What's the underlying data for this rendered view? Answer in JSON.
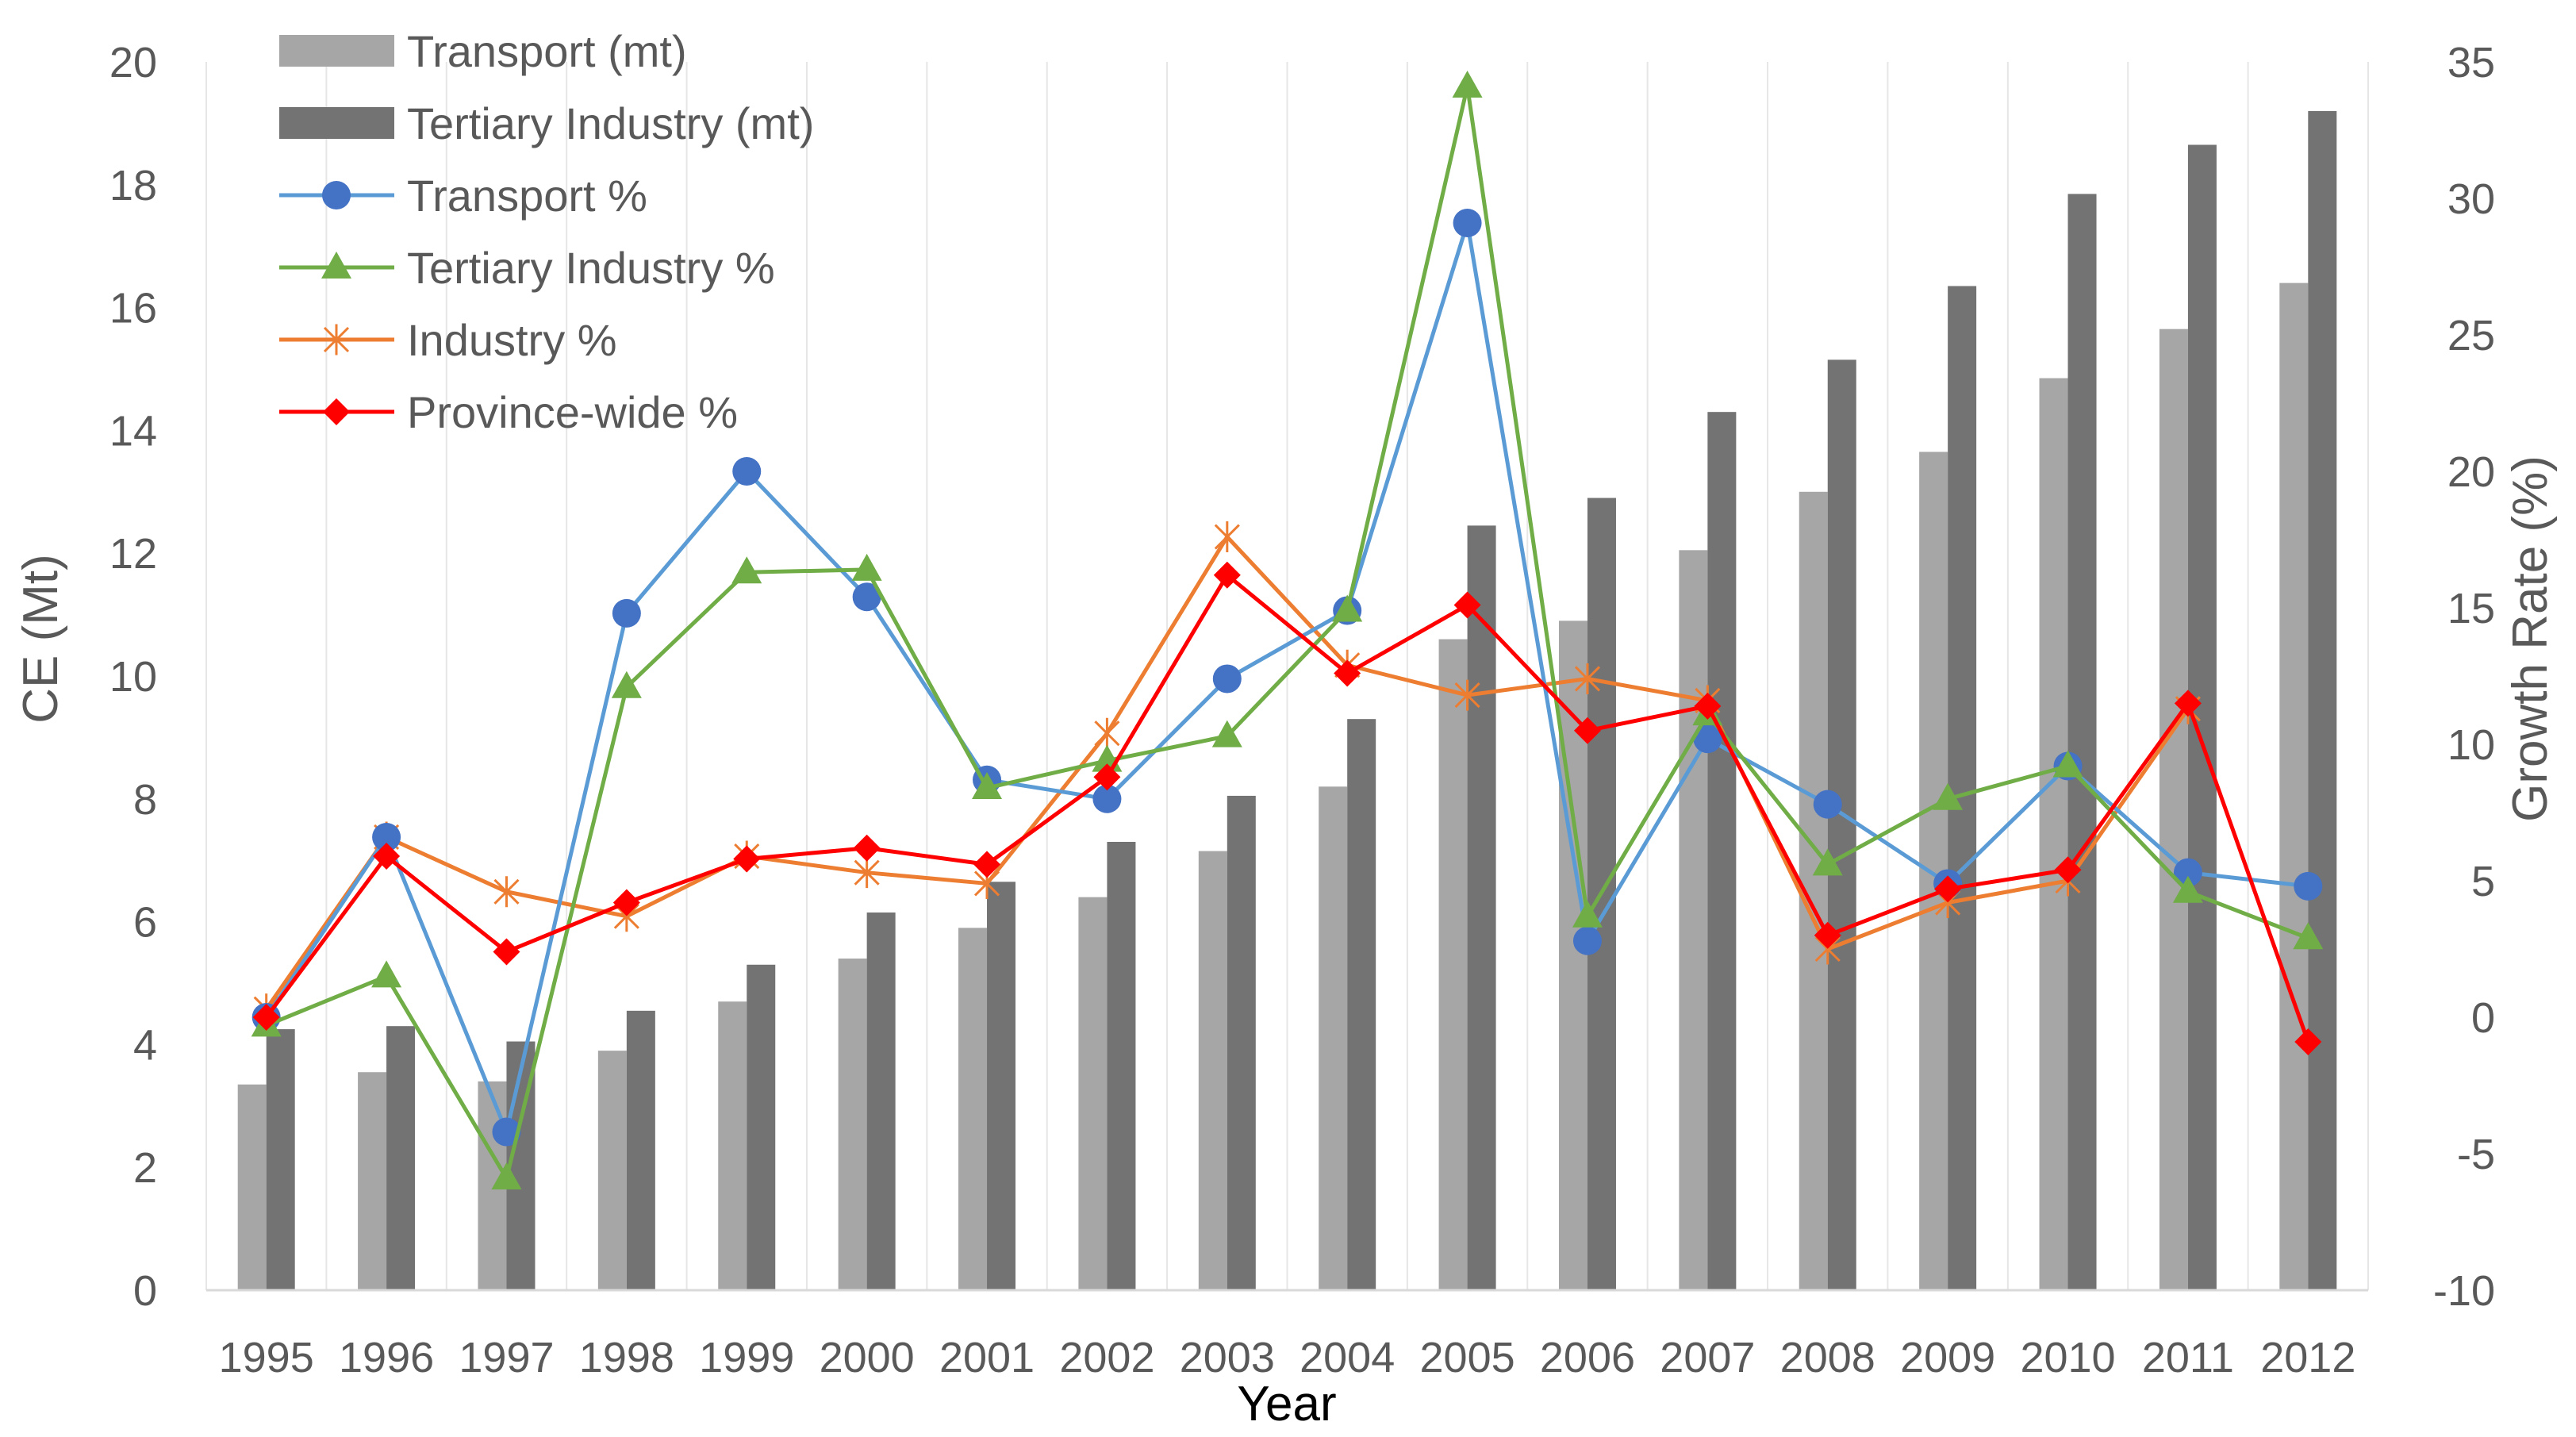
{
  "chart_data": {
    "type": "bar",
    "title": "",
    "xlabel": "Year",
    "ylabel": "CE (Mt)",
    "y2label": "Growth Rate (%)",
    "ylim": [
      0,
      20
    ],
    "y2lim": [
      -10,
      35
    ],
    "yticks": [
      "0",
      "2",
      "4",
      "6",
      "8",
      "10",
      "12",
      "14",
      "16",
      "18",
      "20"
    ],
    "y2ticks": [
      "-10",
      "-5",
      "0",
      "5",
      "10",
      "15",
      "20",
      "25",
      "30",
      "35"
    ],
    "categories": [
      "1995",
      "1996",
      "1997",
      "1998",
      "1999",
      "2000",
      "2001",
      "2002",
      "2003",
      "2004",
      "2005",
      "2006",
      "2007",
      "2008",
      "2009",
      "2010",
      "2011",
      "2012"
    ],
    "grid": "vertical",
    "legend": "top-left",
    "series": [
      {
        "name": "Transport (mt)",
        "kind": "bar",
        "axis": "left",
        "color": "#a6a6a6",
        "values": [
          3.35,
          3.55,
          3.4,
          3.9,
          4.7,
          5.4,
          5.9,
          6.4,
          7.15,
          8.2,
          10.6,
          10.9,
          12.05,
          13.0,
          13.65,
          14.85,
          15.65,
          16.4
        ]
      },
      {
        "name": "Tertiary Industry (mt)",
        "kind": "bar",
        "axis": "left",
        "color": "#737373",
        "values": [
          4.25,
          4.3,
          4.05,
          4.55,
          5.3,
          6.15,
          6.65,
          7.3,
          8.05,
          9.3,
          12.45,
          12.9,
          14.3,
          15.15,
          16.35,
          17.85,
          18.65,
          19.2
        ]
      },
      {
        "name": "Transport %",
        "kind": "line",
        "axis": "right",
        "color": "#5b9bd5",
        "marker": "circle",
        "markerColor": "#4472c4",
        "values": [
          0.0,
          6.6,
          -4.2,
          14.8,
          20.0,
          15.4,
          8.7,
          8.0,
          12.4,
          14.9,
          29.1,
          2.8,
          10.2,
          7.8,
          4.9,
          9.2,
          5.3,
          4.8
        ]
      },
      {
        "name": "Tertiary Industry %",
        "kind": "line",
        "axis": "right",
        "color": "#70ad47",
        "marker": "triangle",
        "markerColor": "#70ad47",
        "values": [
          -0.3,
          1.5,
          -5.9,
          12.1,
          16.3,
          16.4,
          8.4,
          9.4,
          10.3,
          14.9,
          34.1,
          3.7,
          11.1,
          5.6,
          8.0,
          9.2,
          4.6,
          2.9
        ]
      },
      {
        "name": "Industry %",
        "kind": "line",
        "axis": "right",
        "color": "#ed7d31",
        "marker": "star",
        "markerColor": "#ed7d31",
        "values": [
          0.3,
          6.6,
          4.6,
          3.7,
          5.9,
          5.3,
          4.9,
          10.4,
          17.6,
          12.9,
          11.8,
          12.4,
          11.6,
          2.5,
          4.2,
          5.0,
          11.3,
          null
        ]
      },
      {
        "name": "Province-wide %",
        "kind": "line",
        "axis": "right",
        "color": "#ff0000",
        "marker": "diamond",
        "markerColor": "#ff0000",
        "values": [
          0.0,
          5.9,
          2.4,
          4.2,
          5.8,
          6.2,
          5.6,
          8.8,
          16.2,
          12.6,
          15.1,
          10.5,
          11.4,
          3.0,
          4.7,
          5.4,
          11.5,
          -0.9
        ]
      }
    ]
  }
}
